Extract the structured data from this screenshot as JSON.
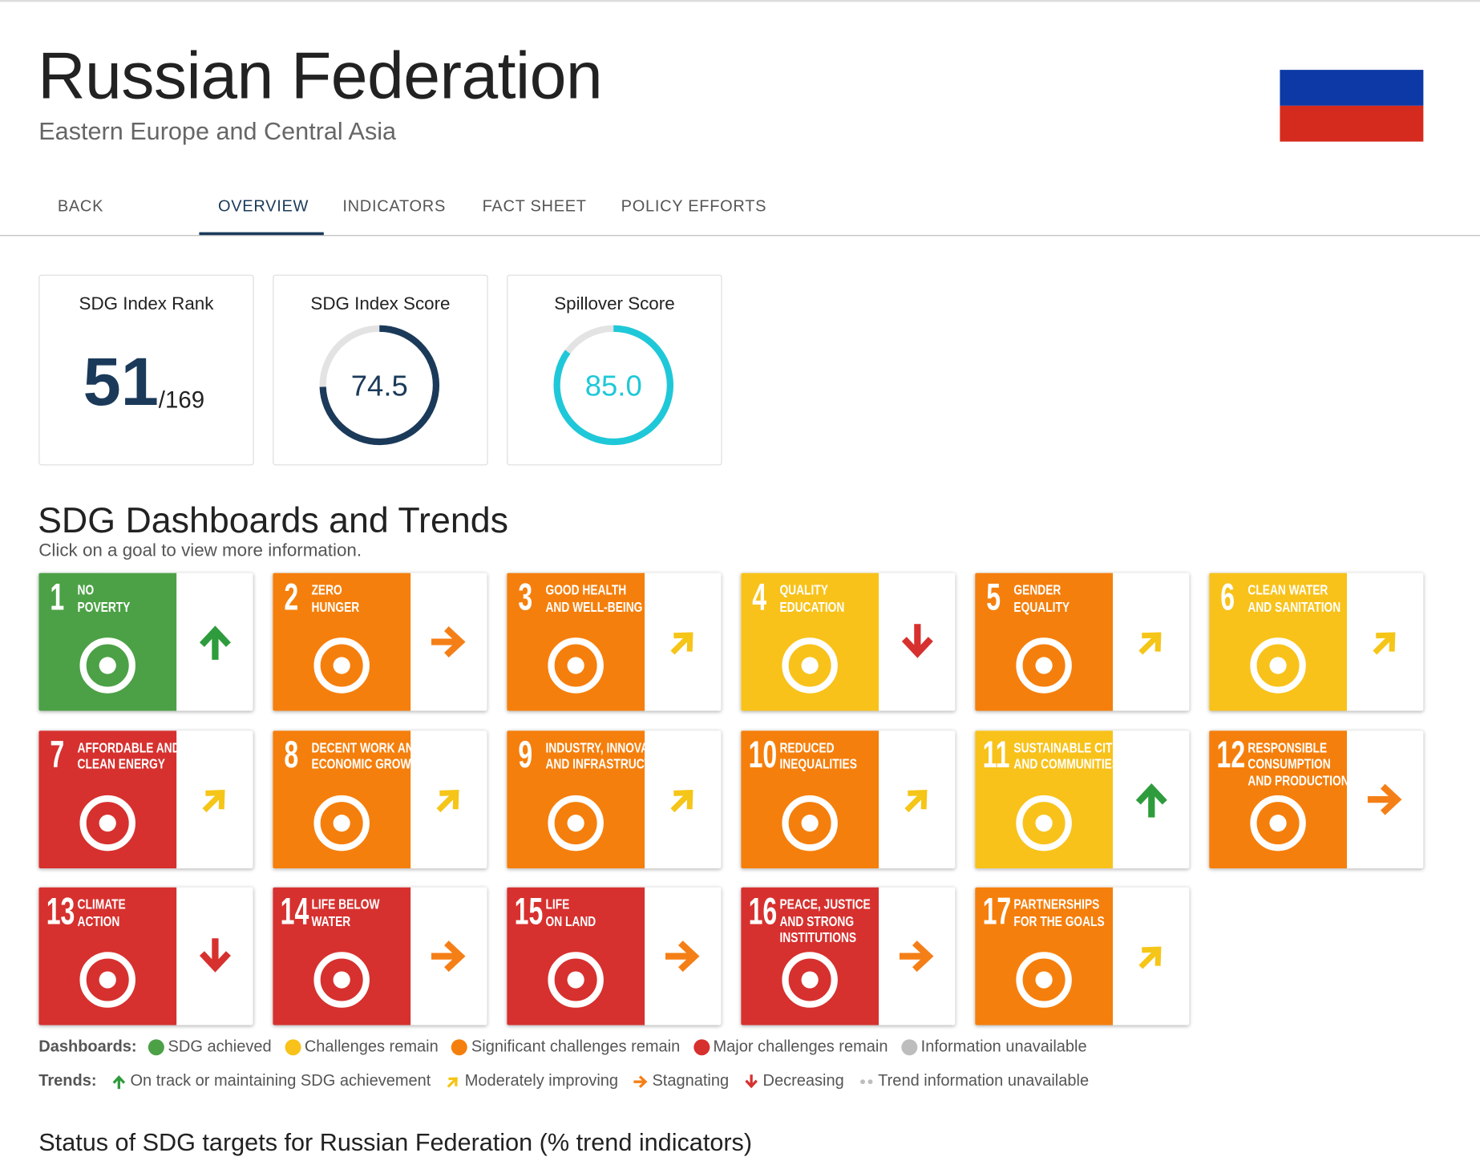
{
  "header": {
    "title": "Russian Federation",
    "subtitle": "Eastern Europe and Central Asia"
  },
  "tabs": [
    "BACK",
    "OVERVIEW",
    "INDICATORS",
    "FACT SHEET",
    "POLICY EFFORTS"
  ],
  "active_tab": 1,
  "cards": [
    {
      "title": "SDG Index Rank",
      "rank": 51,
      "total": {
        "value": 169,
        "label": "/169"
      }
    },
    {
      "title": "SDG Index Score",
      "value": 74.5,
      "color": "#1b3a5a"
    },
    {
      "title": "Spillover Score",
      "value": {
        "value": 85,
        "label": "85.0"
      },
      "color": "#1fc8d8"
    }
  ],
  "dashboards": {
    "title": "SDG Dashboards and Trends",
    "subtitle": "Click on a goal to view more information.",
    "goals": [
      {
        "number": 1,
        "title": [
          "NO",
          "POVERTY"
        ],
        "color": "#4ca146",
        "trend": "up",
        "trend_color": "#2e9c3c"
      },
      {
        "number": 2,
        "title": [
          "ZERO",
          "HUNGER"
        ],
        "color": "#f57f0c",
        "trend": "right",
        "trend_color": "#f57f17"
      },
      {
        "number": 3,
        "title": [
          "GOOD HEALTH",
          "AND WELL-BEING"
        ],
        "color": "#f57f0c",
        "trend": "up-right",
        "trend_color": "#f5c518"
      },
      {
        "number": 4,
        "title": [
          "QUALITY",
          "EDUCATION"
        ],
        "color": "#f8c21a",
        "trend": "down",
        "trend_color": "#d6312f"
      },
      {
        "number": 5,
        "title": [
          "GENDER",
          "EQUALITY"
        ],
        "color": "#f57f0c",
        "trend": "up-right",
        "trend_color": "#f5c518"
      },
      {
        "number": 6,
        "title": [
          "CLEAN WATER",
          "AND SANITATION"
        ],
        "color": "#f8c21a",
        "trend": "up-right",
        "trend_color": "#f5c518"
      },
      {
        "number": 7,
        "title": [
          "AFFORDABLE AND",
          "CLEAN ENERGY"
        ],
        "color": "#d6312f",
        "trend": "up-right",
        "trend_color": "#f5c518"
      },
      {
        "number": 8,
        "title": [
          "DECENT WORK AND",
          "ECONOMIC GROWTH"
        ],
        "color": "#f57f0c",
        "trend": "up-right",
        "trend_color": "#f5c518"
      },
      {
        "number": 9,
        "title": [
          "INDUSTRY, INNOVATION",
          "AND INFRASTRUCTURE"
        ],
        "color": "#f57f0c",
        "trend": "up-right",
        "trend_color": "#f5c518"
      },
      {
        "number": 10,
        "title": [
          "REDUCED",
          "INEQUALITIES"
        ],
        "color": "#f57f0c",
        "trend": "up-right",
        "trend_color": "#f5c518"
      },
      {
        "number": 11,
        "title": [
          "SUSTAINABLE CITIES",
          "AND COMMUNITIES"
        ],
        "color": "#f8c21a",
        "trend": "up",
        "trend_color": "#2e9c3c"
      },
      {
        "number": 12,
        "title": [
          "RESPONSIBLE",
          "CONSUMPTION",
          "AND PRODUCTION"
        ],
        "color": "#f57f0c",
        "trend": "right",
        "trend_color": "#f57f17"
      },
      {
        "number": 13,
        "title": [
          "CLIMATE",
          "ACTION"
        ],
        "color": "#d6312f",
        "trend": "down",
        "trend_color": "#d6312f"
      },
      {
        "number": 14,
        "title": [
          "LIFE BELOW",
          "WATER"
        ],
        "color": "#d6312f",
        "trend": "right",
        "trend_color": "#f57f17"
      },
      {
        "number": 15,
        "title": [
          "LIFE",
          "ON LAND"
        ],
        "color": "#d6312f",
        "trend": "right",
        "trend_color": "#f57f17"
      },
      {
        "number": 16,
        "title": [
          "PEACE, JUSTICE",
          "AND STRONG",
          "INSTITUTIONS"
        ],
        "color": "#d6312f",
        "trend": "right",
        "trend_color": "#f57f17"
      },
      {
        "number": 17,
        "title": [
          "PARTNERSHIPS",
          "FOR THE GOALS"
        ],
        "color": "#f57f0c",
        "trend": "up-right",
        "trend_color": "#f5c518"
      }
    ]
  },
  "legend": {
    "dashboards_label": "Dashboards:",
    "dashboards": [
      {
        "label": "SDG achieved",
        "color": "#4ca146"
      },
      {
        "label": "Challenges remain",
        "color": "#f8c21a"
      },
      {
        "label": "Significant challenges remain",
        "color": "#f57f0c"
      },
      {
        "label": "Major challenges remain",
        "color": "#d6312f"
      },
      {
        "label": "Information unavailable",
        "color": "#bdbdbd"
      }
    ],
    "trends_label": "Trends:",
    "trends": [
      {
        "label": "On track or maintaining SDG achievement",
        "direction": "up",
        "color": "#2e9c3c"
      },
      {
        "label": "Moderately improving",
        "direction": "up-right",
        "color": "#f5c518"
      },
      {
        "label": "Stagnating",
        "direction": "right",
        "color": "#f57f17"
      },
      {
        "label": "Decreasing",
        "direction": "down",
        "color": "#d6312f"
      },
      {
        "label": "Trend information unavailable",
        "direction": "dots",
        "color": "#bdbdbd"
      }
    ]
  },
  "status_title": "Status of SDG targets for Russian Federation (% trend indicators)"
}
